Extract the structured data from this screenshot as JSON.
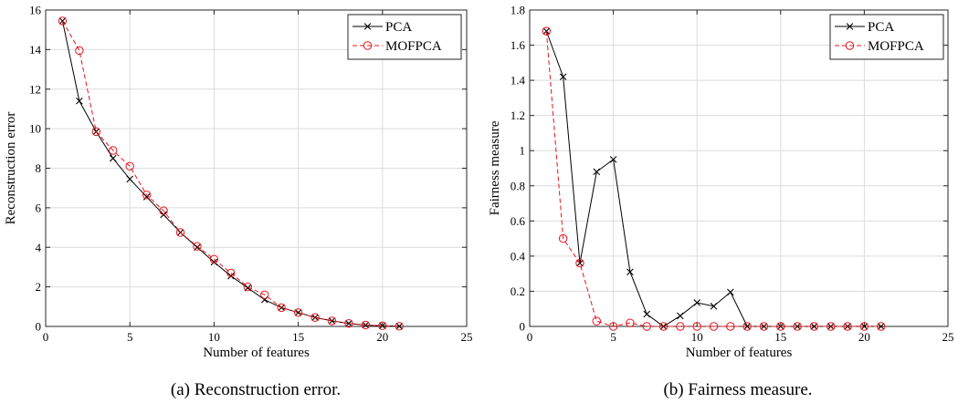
{
  "chart_data": [
    {
      "type": "line",
      "caption": "(a) Reconstruction error.",
      "xlabel": "Number of features",
      "ylabel": "Reconstruction error",
      "xlim": [
        0,
        25
      ],
      "ylim": [
        0,
        16
      ],
      "xticks": [
        0,
        5,
        10,
        15,
        20,
        25
      ],
      "yticks": [
        0,
        2,
        4,
        6,
        8,
        10,
        12,
        14,
        16
      ],
      "grid": true,
      "legend_position": "top-right",
      "x": [
        1,
        2,
        3,
        4,
        5,
        6,
        7,
        8,
        9,
        10,
        11,
        12,
        13,
        14,
        15,
        16,
        17,
        18,
        19,
        20,
        21
      ],
      "series": [
        {
          "name": "PCA",
          "color": "#000000",
          "marker": "x",
          "line": "solid",
          "values": [
            15.45,
            11.4,
            9.85,
            8.5,
            7.45,
            6.55,
            5.65,
            4.75,
            4.0,
            3.25,
            2.55,
            1.95,
            1.35,
            0.95,
            0.7,
            0.45,
            0.28,
            0.15,
            0.07,
            0.03,
            0.01
          ]
        },
        {
          "name": "MOFPCA",
          "color": "#e8141b",
          "marker": "o",
          "line": "dashed",
          "values": [
            15.45,
            13.95,
            9.85,
            8.9,
            8.1,
            6.65,
            5.85,
            4.75,
            4.05,
            3.4,
            2.7,
            2.0,
            1.6,
            0.95,
            0.7,
            0.45,
            0.28,
            0.15,
            0.07,
            0.03,
            0.01
          ]
        }
      ]
    },
    {
      "type": "line",
      "caption": "(b) Fairness measure.",
      "xlabel": "Number of features",
      "ylabel": "Fairness measure",
      "xlim": [
        0,
        25
      ],
      "ylim": [
        0,
        1.8
      ],
      "xticks": [
        0,
        5,
        10,
        15,
        20,
        25
      ],
      "yticks": [
        0,
        0.2,
        0.4,
        0.6,
        0.8,
        1,
        1.2,
        1.4,
        1.6,
        1.8
      ],
      "grid": true,
      "legend_position": "top-right",
      "x": [
        1,
        2,
        3,
        4,
        5,
        6,
        7,
        8,
        9,
        10,
        11,
        12,
        13,
        14,
        15,
        16,
        17,
        18,
        19,
        20,
        21
      ],
      "series": [
        {
          "name": "PCA",
          "color": "#000000",
          "marker": "x",
          "line": "solid",
          "values": [
            1.68,
            1.42,
            0.36,
            0.88,
            0.95,
            0.31,
            0.07,
            0.0,
            0.06,
            0.135,
            0.115,
            0.195,
            0.0,
            0.0,
            0.0,
            0.0,
            0.0,
            0.0,
            0.0,
            0.0,
            0.0
          ]
        },
        {
          "name": "MOFPCA",
          "color": "#e8141b",
          "marker": "o",
          "line": "dashed",
          "values": [
            1.68,
            0.5,
            0.36,
            0.03,
            0.0,
            0.02,
            0.0,
            0.0,
            0.0,
            0.0,
            0.0,
            0.0,
            0.0,
            0.0,
            0.0,
            0.0,
            0.0,
            0.0,
            0.0,
            0.0,
            0.0
          ]
        }
      ]
    }
  ]
}
